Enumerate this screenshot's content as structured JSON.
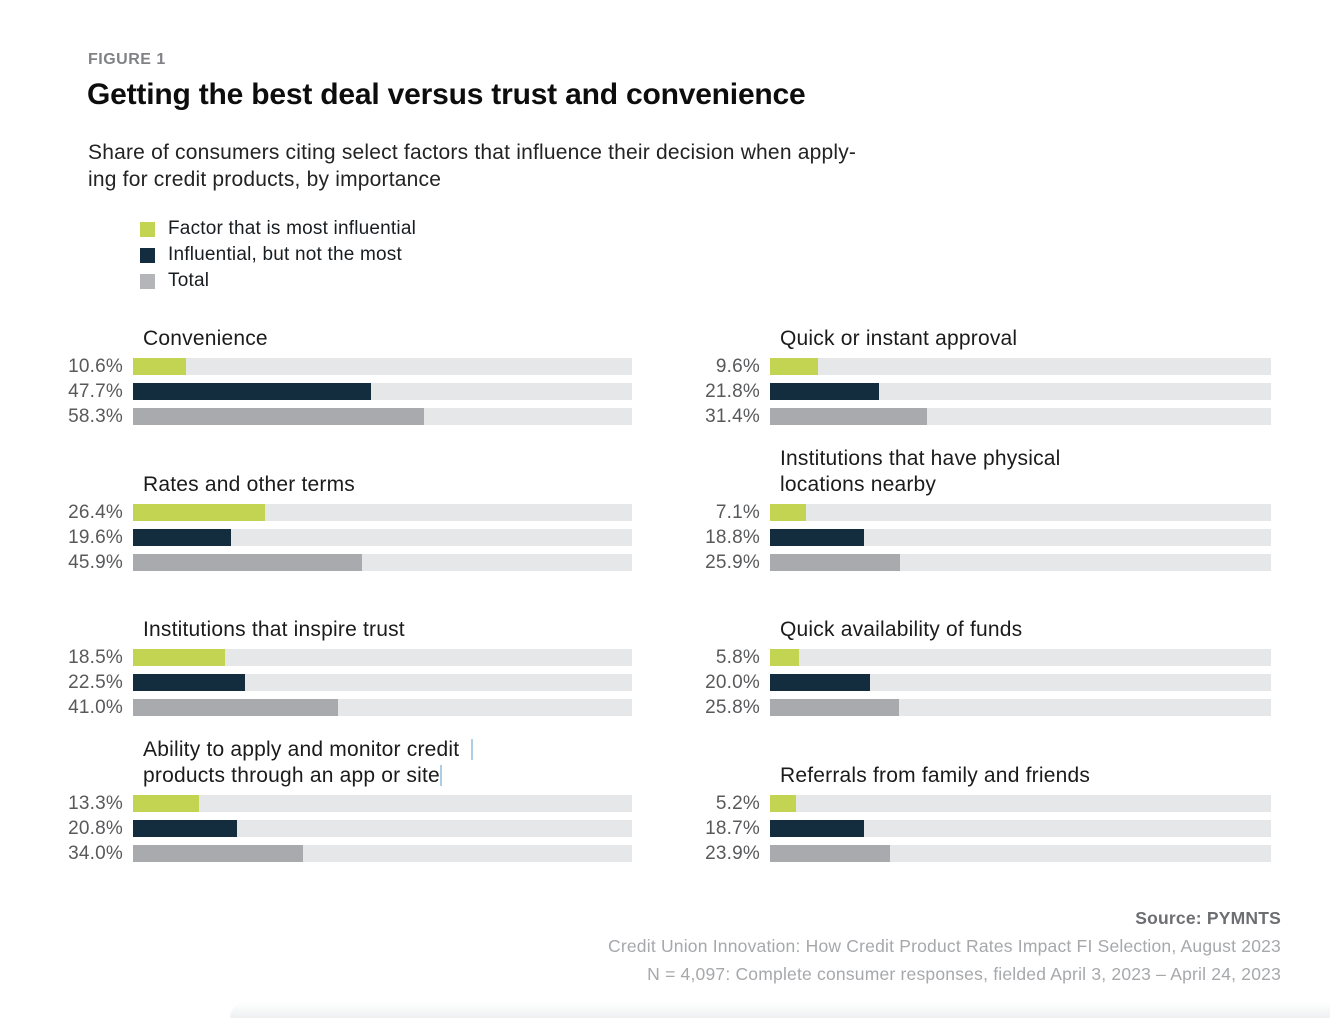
{
  "header": {
    "figure_label": "FIGURE 1",
    "title": "Getting the best deal versus trust and convenience",
    "subtitle_lines": [
      "Share of consumers citing select factors that influence their decision when apply-",
      "ing for credit products, by importance"
    ]
  },
  "legend": {
    "items": [
      {
        "label": "Factor that is most influential",
        "color_key": "most"
      },
      {
        "label": "Influential, but not the most",
        "color_key": "influential"
      },
      {
        "label": "Total",
        "color_key": "total"
      }
    ]
  },
  "colors": {
    "most": "#c2d452",
    "influential": "#132c3e",
    "total": "#a8aaad",
    "legendgray": "#b3b5b8",
    "track": "#e6e7e9"
  },
  "chart_data": {
    "type": "bar",
    "orientation": "horizontal",
    "value_unit": "percent",
    "value_range": [
      0,
      100
    ],
    "grid": false,
    "legend_position": "top-left",
    "title": "Getting the best deal versus trust and convenience",
    "subtitle": "Share of consumers citing select factors that influence their decision when applying for credit products, by importance",
    "series_names": [
      "Factor that is most influential",
      "Influential, but not the most",
      "Total"
    ],
    "columns": {
      "left": [
        {
          "category": "Convenience",
          "title_lines": [
            "Convenience"
          ],
          "values": [
            10.6,
            47.7,
            58.3
          ],
          "labels": [
            "10.6%",
            "47.7%",
            "58.3%"
          ]
        },
        {
          "category": "Rates and other terms",
          "title_lines": [
            "Rates and other terms"
          ],
          "values": [
            26.4,
            19.6,
            45.9
          ],
          "labels": [
            "26.4%",
            "19.6%",
            "45.9%"
          ]
        },
        {
          "category": "Institutions that inspire trust",
          "title_lines": [
            "Institutions that inspire trust"
          ],
          "values": [
            18.5,
            22.5,
            41.0
          ],
          "labels": [
            "18.5%",
            "22.5%",
            "41.0%"
          ]
        },
        {
          "category": "Ability to apply and monitor credit products through an app or site",
          "title_lines": [
            "Ability to apply and monitor credit",
            "products through an app or site"
          ],
          "values": [
            13.3,
            20.8,
            34.0
          ],
          "labels": [
            "13.3%",
            "20.8%",
            "34.0%"
          ]
        }
      ],
      "right": [
        {
          "category": "Quick or instant approval",
          "title_lines": [
            "Quick or instant approval"
          ],
          "values": [
            9.6,
            21.8,
            31.4
          ],
          "labels": [
            "9.6%",
            "21.8%",
            "31.4%"
          ]
        },
        {
          "category": "Institutions that have physical locations nearby",
          "title_lines": [
            "Institutions that have physical",
            "locations nearby"
          ],
          "values": [
            7.1,
            18.8,
            25.9
          ],
          "labels": [
            "7.1%",
            "18.8%",
            "25.9%"
          ]
        },
        {
          "category": "Quick availability of funds",
          "title_lines": [
            "Quick availability of funds"
          ],
          "values": [
            5.8,
            20.0,
            25.8
          ],
          "labels": [
            "5.8%",
            "20.0%",
            "25.8%"
          ]
        },
        {
          "category": "Referrals from family and friends",
          "title_lines": [
            "Referrals from family and friends"
          ],
          "values": [
            5.2,
            18.7,
            23.9
          ],
          "labels": [
            "5.2%",
            "18.7%",
            "23.9%"
          ]
        }
      ]
    }
  },
  "footer": {
    "source": "Source: PYMNTS",
    "line2": "Credit Union Innovation: How Credit Product Rates Impact FI Selection, August 2023",
    "line3": "N = 4,097: Complete consumer responses, fielded April 3, 2023 – April 24, 2023"
  }
}
